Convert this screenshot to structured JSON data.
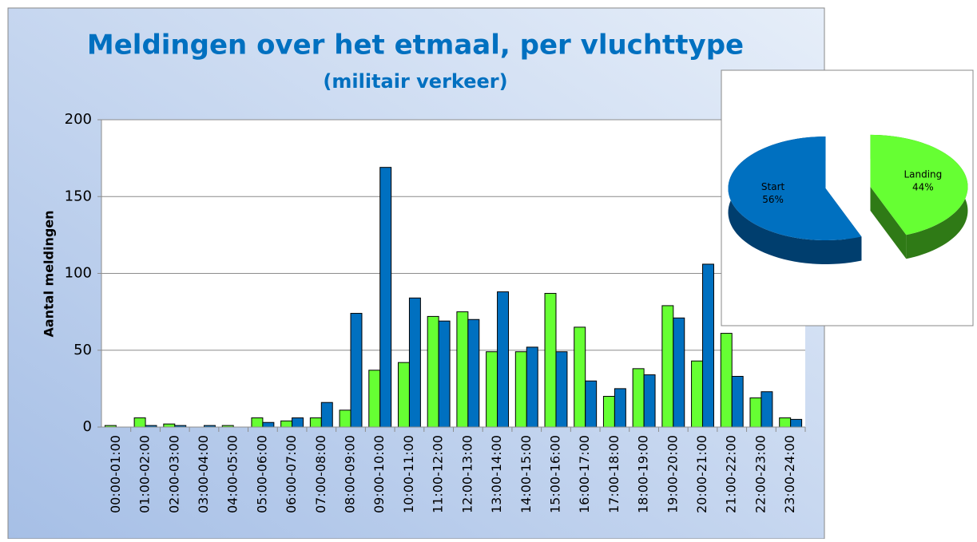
{
  "chart_data": [
    {
      "type": "bar",
      "title": "Meldingen over het etmaal, per vluchttype",
      "subtitle": "(militair verkeer)",
      "y_label": "Aantal meldingen",
      "categories": [
        "00:00-01:00",
        "01:00-02:00",
        "02:00-03:00",
        "03:00-04:00",
        "04:00-05:00",
        "05:00-06:00",
        "06:00-07:00",
        "07:00-08:00",
        "08:00-09:00",
        "09:00-10:00",
        "10:00-11:00",
        "11:00-12:00",
        "12:00-13:00",
        "13:00-14:00",
        "14:00-15:00",
        "15:00-16:00",
        "16:00-17:00",
        "17:00-18:00",
        "18:00-19:00",
        "19:00-20:00",
        "20:00-21:00",
        "21:00-22:00",
        "22:00-23:00",
        "23:00-24:00"
      ],
      "series": [
        {
          "color": "#66ff33",
          "values": [
            1,
            6,
            2,
            0,
            1,
            6,
            4,
            6,
            11,
            37,
            42,
            72,
            75,
            49,
            49,
            87,
            65,
            20,
            38,
            79,
            43,
            61,
            19,
            6
          ]
        },
        {
          "color": "#0070c0",
          "values": [
            0,
            1,
            1,
            1,
            0,
            3,
            6,
            16,
            74,
            169,
            84,
            69,
            70,
            88,
            52,
            49,
            30,
            25,
            34,
            71,
            106,
            33,
            23,
            5
          ]
        }
      ],
      "ylim": [
        0,
        200
      ],
      "yticks": [
        0,
        50,
        100,
        150,
        200
      ],
      "grid": true
    },
    {
      "type": "pie",
      "categories": [
        "Start",
        "Landing"
      ],
      "values": [
        56,
        44
      ],
      "value_labels": [
        "56%",
        "44%"
      ],
      "colors": [
        "#0070c0",
        "#66ff33"
      ]
    }
  ]
}
